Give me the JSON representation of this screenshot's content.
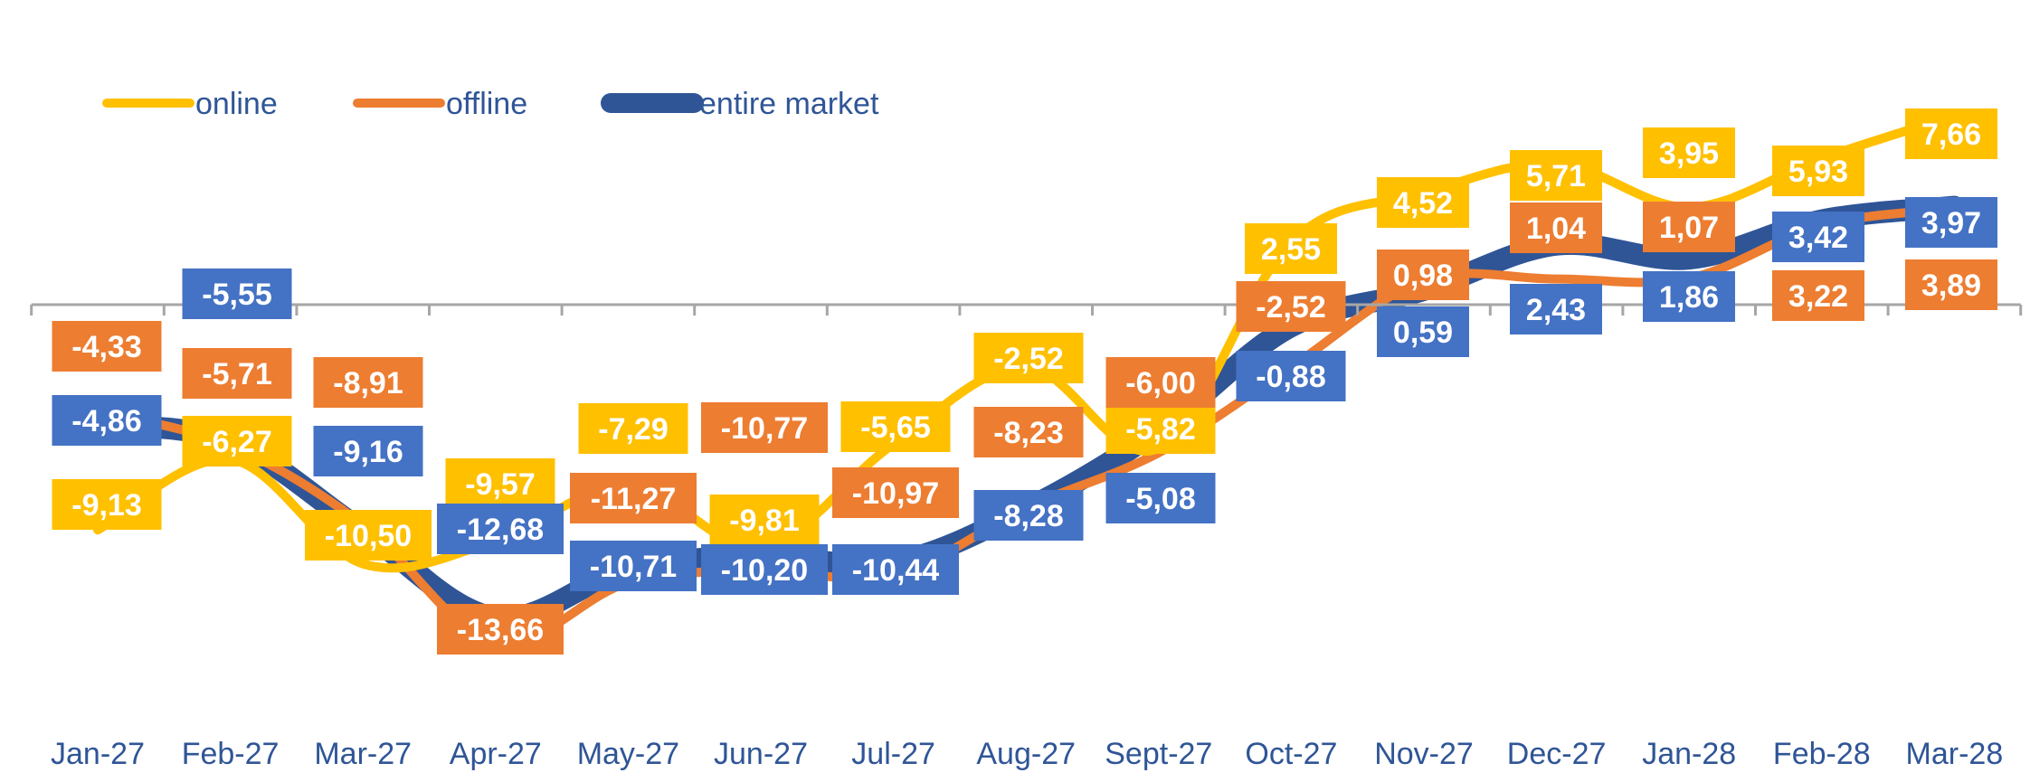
{
  "chart_data": {
    "type": "line",
    "categories": [
      "Jan-27",
      "Feb-27",
      "Mar-27",
      "Apr-27",
      "May-27",
      "Jun-27",
      "Jul-27",
      "Aug-27",
      "Sept-27",
      "Oct-27",
      "Nov-27",
      "Dec-27",
      "Jan-28",
      "Feb-28",
      "Mar-28"
    ],
    "series": [
      {
        "name": "online",
        "color": "#FFC000",
        "values": [
          -9.13,
          -6.27,
          -10.5,
          -9.57,
          -7.29,
          -9.81,
          -5.65,
          -2.52,
          -5.82,
          2.55,
          4.52,
          5.71,
          3.95,
          5.93,
          7.66
        ],
        "labels": [
          "-9,13",
          "-6,27",
          "-10,50",
          "-9,57",
          "-7,29",
          "-9,81",
          "-5,65",
          "-2,52",
          "-5,82",
          "2,55",
          "4,52",
          "5,71",
          "3,95",
          "5,93",
          "7,66"
        ]
      },
      {
        "name": "offline",
        "color": "#ED7D31",
        "values": [
          -4.33,
          -5.71,
          -8.91,
          -13.66,
          -11.27,
          -10.77,
          -10.97,
          -8.23,
          -6.0,
          -2.52,
          0.98,
          1.04,
          1.07,
          3.22,
          3.89
        ],
        "labels": [
          "-4,33",
          "-5,71",
          "-8,91",
          "-13,66",
          "-11,27",
          "-10,77",
          "-10,97",
          "-8,23",
          "-6,00",
          "-2,52",
          "0,98",
          "1,04",
          "1,07",
          "3,22",
          "3,89"
        ]
      },
      {
        "name": "entire market",
        "color": "#2F5597",
        "label_color": "#4472C4",
        "values": [
          -4.86,
          -5.55,
          -9.16,
          -12.68,
          -10.71,
          -10.2,
          -10.44,
          -8.28,
          -5.08,
          -0.88,
          0.59,
          2.43,
          1.86,
          3.42,
          3.97
        ],
        "labels": [
          "-4,86",
          "-5,55",
          "-9,16",
          "-12,68",
          "-10,71",
          "-10,20",
          "-10,44",
          "-8,28",
          "-5,08",
          "-0,88",
          "0,59",
          "2,43",
          "1,86",
          "3,42",
          "3,97"
        ]
      }
    ],
    "legend_position": "top-left",
    "grid": false
  }
}
